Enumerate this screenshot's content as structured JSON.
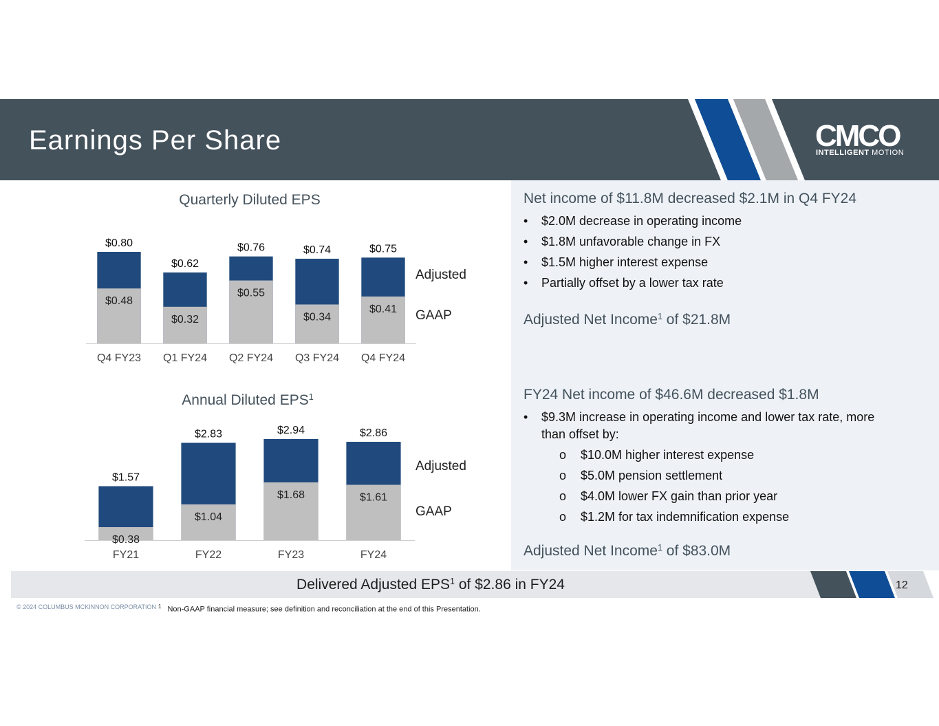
{
  "slide": {
    "title": "Earnings Per Share",
    "page_number": "12",
    "copyright": "© 2024 COLUMBUS MCKINNON CORPORATION",
    "footnote_marker": "1",
    "footnote": "Non-GAAP financial measure; see definition and reconciliation at the end of this Presentation."
  },
  "logo": {
    "wordmark": "CMCO",
    "tagline_bold": "INTELLIGENT",
    "tagline_regular": "MOTION"
  },
  "colors": {
    "header_bg": "#44525c",
    "adjusted": "#204a7d",
    "gaap": "#bfbfbf",
    "panel_bg": "#eef2f7",
    "stripe_blue": "#0f4e96",
    "stripe_gray": "#a5a8ab"
  },
  "quarterly": {
    "title": "Quarterly Diluted EPS",
    "legend_adjusted": "Adjusted",
    "legend_gaap": "GAAP"
  },
  "annual": {
    "title": "Annual Diluted EPS",
    "title_sup": "1",
    "legend_adjusted": "Adjusted",
    "legend_gaap": "GAAP"
  },
  "chart_data": [
    {
      "type": "bar",
      "title": "Quarterly Diluted EPS",
      "stacked": "overlay",
      "categories": [
        "Q4 FY23",
        "Q1 FY24",
        "Q2 FY24",
        "Q3 FY24",
        "Q4 FY24"
      ],
      "series": [
        {
          "name": "Adjusted",
          "values": [
            0.8,
            0.62,
            0.76,
            0.74,
            0.75
          ],
          "labels": [
            "$0.80",
            "$0.62",
            "$0.76",
            "$0.74",
            "$0.75"
          ]
        },
        {
          "name": "GAAP",
          "values": [
            0.48,
            0.32,
            0.55,
            0.34,
            0.41
          ],
          "labels": [
            "$0.48",
            "$0.32",
            "$0.55",
            "$0.34",
            "$0.41"
          ]
        }
      ],
      "ylim": [
        0,
        0.8
      ],
      "grid": false,
      "legend_position": "right"
    },
    {
      "type": "bar",
      "title": "Annual Diluted EPS",
      "stacked": "overlay",
      "categories": [
        "FY21",
        "FY22",
        "FY23",
        "FY24"
      ],
      "series": [
        {
          "name": "Adjusted",
          "values": [
            1.57,
            2.83,
            2.94,
            2.86
          ],
          "labels": [
            "$1.57",
            "$2.83",
            "$2.94",
            "$2.86"
          ]
        },
        {
          "name": "GAAP",
          "values": [
            0.38,
            1.04,
            1.68,
            1.61
          ],
          "labels": [
            "$0.38",
            "$1.04",
            "$1.68",
            "$1.61"
          ]
        }
      ],
      "ylim": [
        0,
        2.94
      ],
      "grid": false,
      "legend_position": "right"
    }
  ],
  "commentary": {
    "q4_heading": "Net income of $11.8M decreased $2.1M in Q4 FY24",
    "q4_bullets": [
      "$2.0M decrease in operating income",
      "$1.8M unfavorable change in FX",
      "$1.5M higher interest expense",
      "Partially offset by a lower tax rate"
    ],
    "q4_adjusted_prefix": "Adjusted Net Income",
    "q4_adjusted_sup": "1",
    "q4_adjusted_suffix": " of $21.8M",
    "fy_heading": "FY24 Net income of $46.6M decreased $1.8M",
    "fy_bullet_line1": "$9.3M increase in operating income and lower tax rate, more",
    "fy_bullet_line2": "than offset by:",
    "fy_sub_marker": "o",
    "fy_sub_bullets": [
      "$10.0M higher interest expense",
      "$5.0M pension settlement",
      "$4.0M lower FX gain than prior year",
      "$1.2M for tax indemnification expense"
    ],
    "fy_adjusted_prefix": "Adjusted Net Income",
    "fy_adjusted_sup": "1",
    "fy_adjusted_suffix": " of $83.0M",
    "bullet_glyph": "•"
  },
  "summary": {
    "prefix": "Delivered Adjusted EPS",
    "sup": "1",
    "suffix": " of $2.86 in FY24"
  }
}
